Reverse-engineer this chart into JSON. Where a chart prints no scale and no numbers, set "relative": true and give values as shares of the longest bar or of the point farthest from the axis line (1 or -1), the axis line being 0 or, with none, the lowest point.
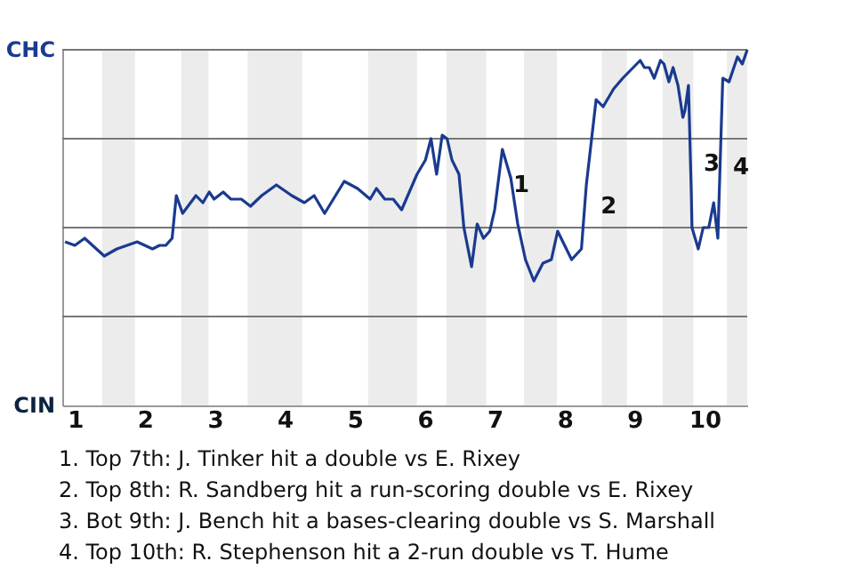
{
  "chart_data": {
    "type": "line",
    "relative": true,
    "x": [
      0.86,
      1.0,
      1.14,
      1.42,
      1.6,
      1.89,
      2.11,
      2.21,
      2.3,
      2.39,
      2.45,
      2.54,
      2.73,
      2.83,
      2.92,
      2.99,
      3.12,
      3.23,
      3.38,
      3.51,
      3.67,
      3.88,
      4.1,
      4.28,
      4.42,
      4.57,
      4.85,
      5.04,
      5.22,
      5.31,
      5.43,
      5.55,
      5.67,
      5.89,
      6.01,
      6.09,
      6.17,
      6.25,
      6.32,
      6.39,
      6.49,
      6.56,
      6.67,
      6.75,
      6.84,
      6.93,
      7.0,
      7.11,
      7.23,
      7.33,
      7.44,
      7.56,
      7.69,
      7.81,
      7.9,
      8.1,
      8.24,
      8.31,
      8.45,
      8.55,
      8.7,
      8.83,
      9.08,
      9.14,
      9.21,
      9.28,
      9.37,
      9.42,
      9.49,
      9.55,
      9.62,
      9.69,
      9.72,
      9.77,
      9.81,
      9.82,
      9.91,
      9.98,
      10.06,
      10.13,
      10.19,
      10.26,
      10.35,
      10.47,
      10.54,
      10.61
    ],
    "series": [
      {
        "color": "#1a3a8f",
        "values": [
          0.46,
          0.45,
          0.47,
          0.42,
          0.44,
          0.46,
          0.44,
          0.45,
          0.45,
          0.47,
          0.59,
          0.54,
          0.59,
          0.57,
          0.6,
          0.58,
          0.6,
          0.58,
          0.58,
          0.56,
          0.59,
          0.62,
          0.59,
          0.57,
          0.59,
          0.54,
          0.63,
          0.61,
          0.58,
          0.61,
          0.58,
          0.58,
          0.55,
          0.65,
          0.69,
          0.75,
          0.65,
          0.76,
          0.75,
          0.69,
          0.65,
          0.5,
          0.39,
          0.51,
          0.47,
          0.49,
          0.55,
          0.72,
          0.64,
          0.51,
          0.41,
          0.35,
          0.4,
          0.41,
          0.49,
          0.41,
          0.44,
          0.62,
          0.86,
          0.84,
          0.89,
          0.92,
          0.97,
          0.95,
          0.95,
          0.92,
          0.97,
          0.96,
          0.91,
          0.95,
          0.9,
          0.81,
          0.83,
          0.9,
          0.6,
          0.5,
          0.44,
          0.5,
          0.5,
          0.57,
          0.47,
          0.92,
          0.91,
          0.98,
          0.96,
          1
        ]
      }
    ],
    "xlim": [
      0.82,
      10.61
    ],
    "xticks": [
      1,
      2,
      3,
      4,
      5,
      6,
      7,
      8,
      9,
      10
    ],
    "ref_lines": [
      {
        "axis": "y",
        "value": 0.25,
        "color": "#777777"
      },
      {
        "axis": "y",
        "value": 0.5,
        "color": "#777777"
      },
      {
        "axis": "y",
        "value": 0.75,
        "color": "#777777"
      },
      {
        "axis": "y",
        "value": 1,
        "color": "#777777"
      }
    ],
    "bands": [
      {
        "axis": "x",
        "from": 1.39,
        "to": 1.86,
        "color": "#ececec"
      },
      {
        "axis": "x",
        "from": 2.52,
        "to": 2.91,
        "color": "#ececec"
      },
      {
        "axis": "x",
        "from": 3.47,
        "to": 4.25,
        "color": "#ececec"
      },
      {
        "axis": "x",
        "from": 5.19,
        "to": 5.89,
        "color": "#ececec"
      },
      {
        "axis": "x",
        "from": 6.31,
        "to": 6.88,
        "color": "#ececec"
      },
      {
        "axis": "x",
        "from": 7.42,
        "to": 7.89,
        "color": "#ececec"
      },
      {
        "axis": "x",
        "from": 8.53,
        "to": 8.89,
        "color": "#ececec"
      },
      {
        "axis": "x",
        "from": 9.4,
        "to": 9.84,
        "color": "#ececec"
      },
      {
        "axis": "x",
        "from": 10.32,
        "to": 10.61,
        "color": "#ececec"
      }
    ],
    "annotations": [
      "CHC",
      "CIN",
      {
        "text": "1",
        "x": 7.19,
        "y": 0.62
      },
      {
        "text": "2",
        "x": 8.44,
        "y": 0.56
      },
      {
        "text": "3",
        "x": 9.91,
        "y": 0.68
      },
      {
        "text": "4",
        "x": 10.33,
        "y": 0.67
      },
      "1. Top 7th: J. Tinker hit a double vs E. Rixey",
      "2. Top 8th: R. Sandberg hit a run-scoring double vs E. Rixey",
      "3. Bot 9th: J. Bench hit a bases-clearing double vs S. Marshall",
      "4. Top 10th: R. Stephenson hit a 2-run double vs T. Hume"
    ],
    "marker": "none"
  }
}
